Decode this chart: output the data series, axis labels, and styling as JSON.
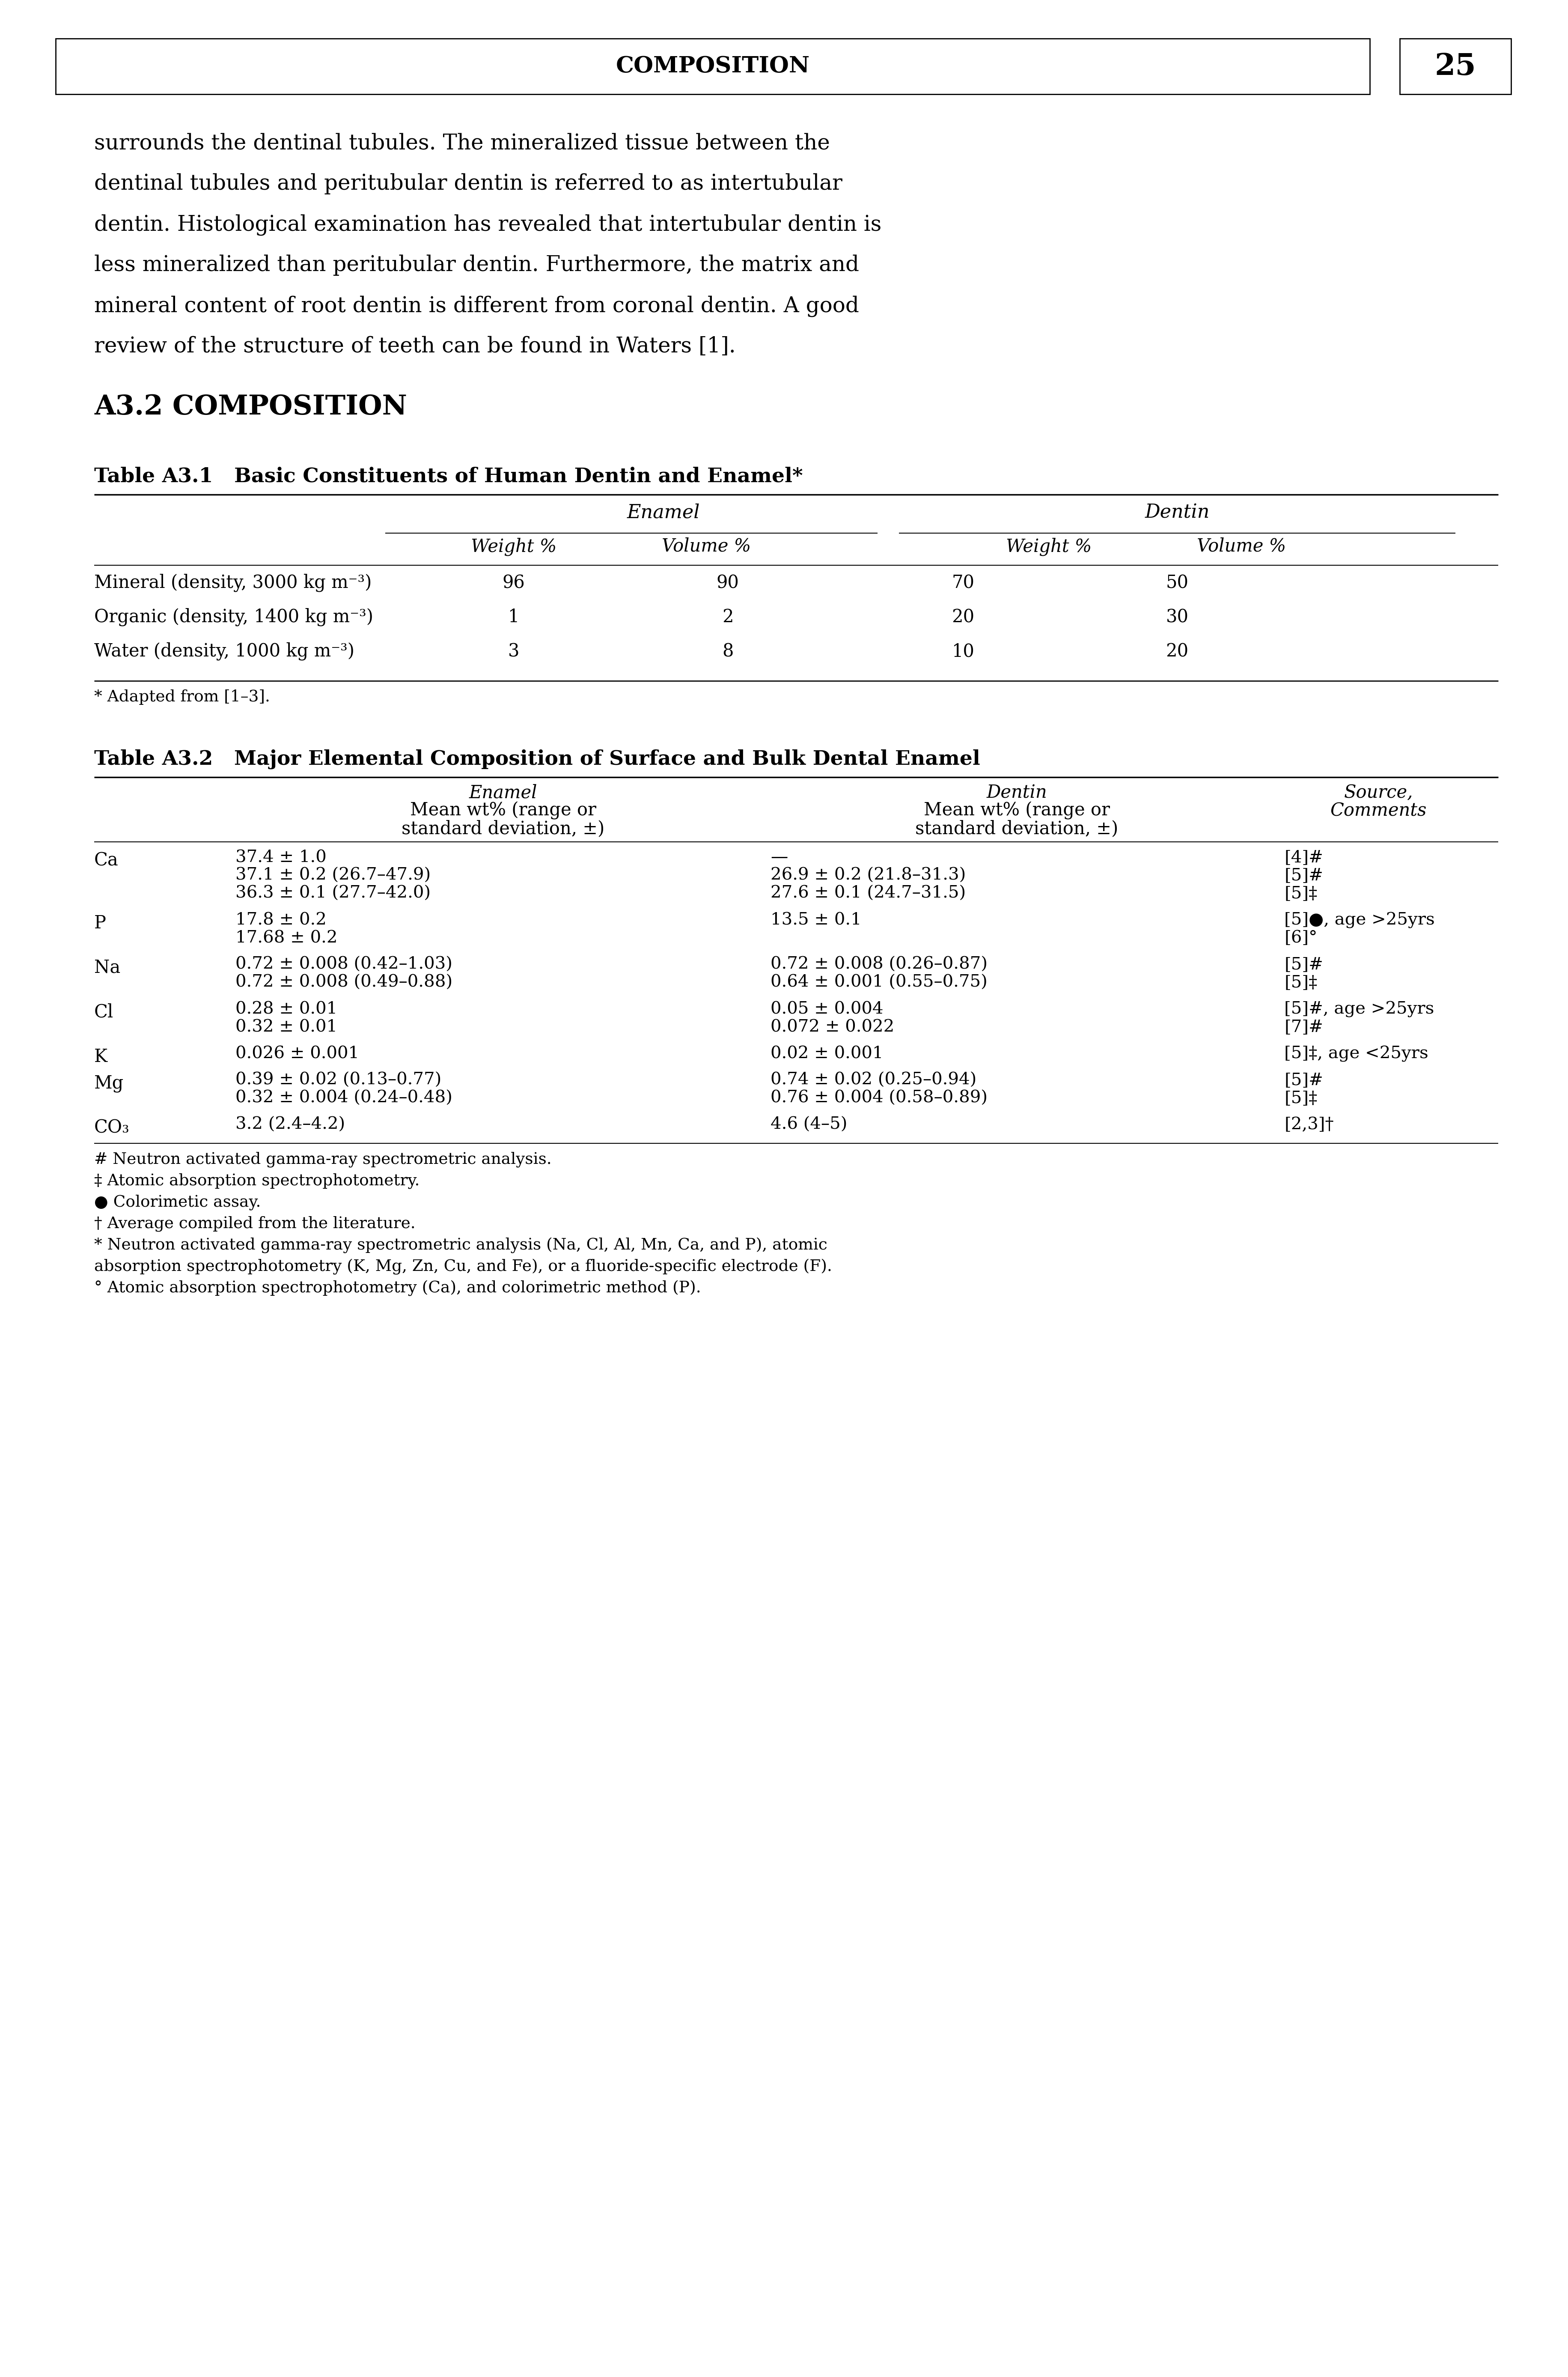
{
  "page_bg": "#ffffff",
  "header_text": "COMPOSITION",
  "page_number": "25",
  "body_text": "surrounds the dentinal tubules. The mineralized tissue between the\ndentinal tubules and peritubular dentin is referred to as intertubular\ndentin. Histological examination has revealed that intertubular dentin is\nless mineralized than peritubular dentin. Furthermore, the matrix and\nmineral content of root dentin is different from coronal dentin. A good\nreview of the structure of teeth can be found in Waters [1].",
  "section_heading": "A3.2 COMPOSITION",
  "table1_title": "Table A3.1   Basic Constituents of Human Dentin and Enamel*",
  "table1_col_headers": [
    "",
    "Enamel",
    "",
    "Dentin",
    ""
  ],
  "table1_sub_headers": [
    "",
    "Weight %",
    "Volume %",
    "Weight %",
    "Volume %"
  ],
  "table1_rows": [
    [
      "Mineral (density, 3000 kg m⁻³)",
      "96",
      "90",
      "70",
      "50"
    ],
    [
      "Organic (density, 1400 kg m⁻³)",
      "1",
      "2",
      "20",
      "30"
    ],
    [
      "Water (density, 1000 kg m⁻³)",
      "3",
      "8",
      "10",
      "20"
    ]
  ],
  "table1_footnote": "* Adapted from [1–3].",
  "table2_title": "Table A3.2   Major Elemental Composition of Surface and Bulk Dental Enamel",
  "table2_col_headers": [
    "",
    "Enamel\nMean wt% (range or\nstandard deviation, ±)",
    "Dentin\nMean wt% (range or\nstandard deviation, ±)",
    "Source,\nComments"
  ],
  "table2_rows": [
    [
      "Ca",
      "37.4 ± 1.0\n37.1 ± 0.2 (26.7–47.9)\n36.3 ± 0.1 (27.7–42.0)",
      "—\n26.9 ± 0.2 (21.8–31.3)\n27.6 ± 0.1 (24.7–31.5)",
      "[4]#\n[5]#\n[5]‡"
    ],
    [
      "P",
      "17.8 ± 0.2\n17.68 ± 0.2",
      "13.5 ± 0.1",
      "[5]●, age >25yrs\n[6]°"
    ],
    [
      "Na",
      "0.72 ± 0.008 (0.42–1.03)\n0.72 ± 0.008 (0.49–0.88)",
      "0.72 ± 0.008 (0.26–0.87)\n0.64 ± 0.001 (0.55–0.75)",
      "[5]#\n[5]‡"
    ],
    [
      "Cl",
      "0.28 ± 0.01\n0.32 ± 0.01",
      "0.05 ± 0.004\n0.072 ± 0.022",
      "[5]#, age >25yrs\n[7]#"
    ],
    [
      "K",
      "0.026 ± 0.001",
      "0.02 ± 0.001",
      "[5]‡, age <25yrs"
    ],
    [
      "Mg",
      "0.39 ± 0.02 (0.13–0.77)\n0.32 ± 0.004 (0.24–0.48)",
      "0.74 ± 0.02 (0.25–0.94)\n0.76 ± 0.004 (0.58–0.89)",
      "[5]#\n[5]‡"
    ],
    [
      "CO₃",
      "3.2 (2.4–4.2)",
      "4.6 (4–5)",
      "[2,3]†"
    ]
  ],
  "table2_footnotes": [
    "# Neutron activated gamma-ray spectrometric analysis.",
    "‡ Atomic absorption spectrophotometry.",
    "● Colorimetic assay.",
    "† Average compiled from the literature.",
    "* Neutron activated gamma-ray spectrometric analysis (Na, Cl, Al, Mn, Ca, and P), atomic",
    "absorption spectrophotometry (K, Mg, Zn, Cu, and Fe), or a fluoride-specific electrode (F).",
    "° Atomic absorption spectrophotometry (Ca), and colorimetric method (P)."
  ]
}
